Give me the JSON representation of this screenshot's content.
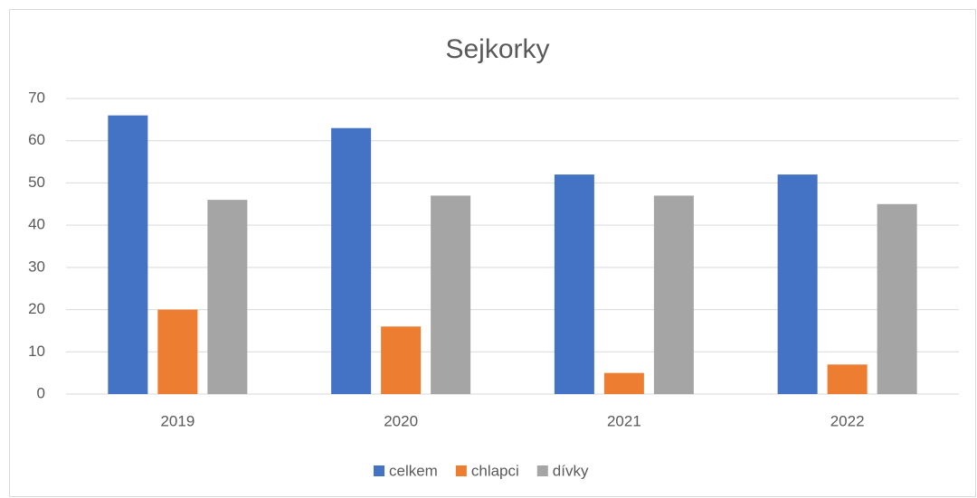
{
  "chart_data": {
    "type": "bar",
    "title": "Sejkorky",
    "categories": [
      "2019",
      "2020",
      "2021",
      "2022"
    ],
    "series": [
      {
        "name": "celkem",
        "color": "#4472c4",
        "values": [
          66,
          63,
          52,
          52
        ]
      },
      {
        "name": "chlapci",
        "color": "#ed7d31",
        "values": [
          20,
          16,
          5,
          7
        ]
      },
      {
        "name": "dívky",
        "color": "#a5a5a5",
        "values": [
          46,
          47,
          47,
          45
        ]
      }
    ],
    "ylim": [
      0,
      70
    ],
    "yticks": [
      0,
      10,
      20,
      30,
      40,
      50,
      60,
      70
    ],
    "grid": true,
    "legend": "bottom"
  }
}
